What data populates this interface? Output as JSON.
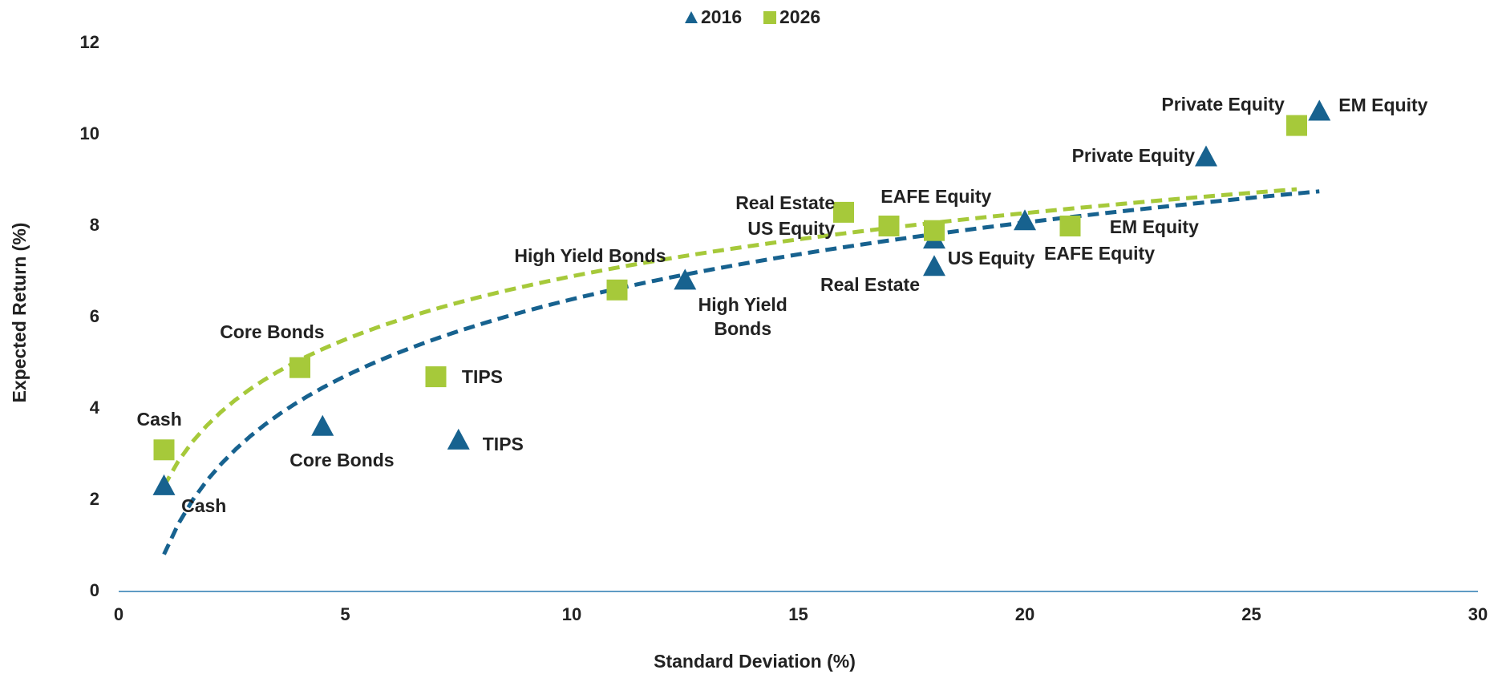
{
  "chart_data": {
    "type": "scatter",
    "xlabel": "Standard Deviation (%)",
    "ylabel": "Expected Return (%)",
    "xlim": [
      0,
      30
    ],
    "xticks": [
      0,
      5,
      10,
      15,
      20,
      25,
      30
    ],
    "ylim": [
      0,
      12
    ],
    "yticks": [
      0,
      2,
      4,
      6,
      8,
      10,
      12
    ],
    "legend": "top",
    "trendline": "logarithmic",
    "series": [
      {
        "name": "2016",
        "color": "#17628f",
        "marker": "triangle",
        "labels": [
          "Cash",
          "Core Bonds",
          "TIPS",
          "High Yield Bonds",
          "Real Estate",
          "US Equity",
          "EAFE Equity",
          "Private Equity",
          "EM Equity"
        ],
        "x": [
          1,
          4.5,
          7.5,
          12.5,
          18,
          18,
          20,
          24,
          26.5
        ],
        "values": [
          2.3,
          3.6,
          3.3,
          6.8,
          7.1,
          7.7,
          8.1,
          9.5,
          10.5
        ]
      },
      {
        "name": "2026",
        "color": "#a6c93a",
        "marker": "square",
        "labels": [
          "Cash",
          "Core Bonds",
          "TIPS",
          "High Yield Bonds",
          "Real Estate",
          "EAFE Equity",
          "US Equity",
          "EM Equity",
          "Private Equity"
        ],
        "x": [
          1,
          4,
          7,
          11,
          16,
          17,
          18,
          21,
          26
        ],
        "values": [
          3.1,
          4.9,
          4.7,
          6.6,
          8.3,
          8.0,
          7.9,
          8.0,
          10.2
        ]
      }
    ]
  }
}
